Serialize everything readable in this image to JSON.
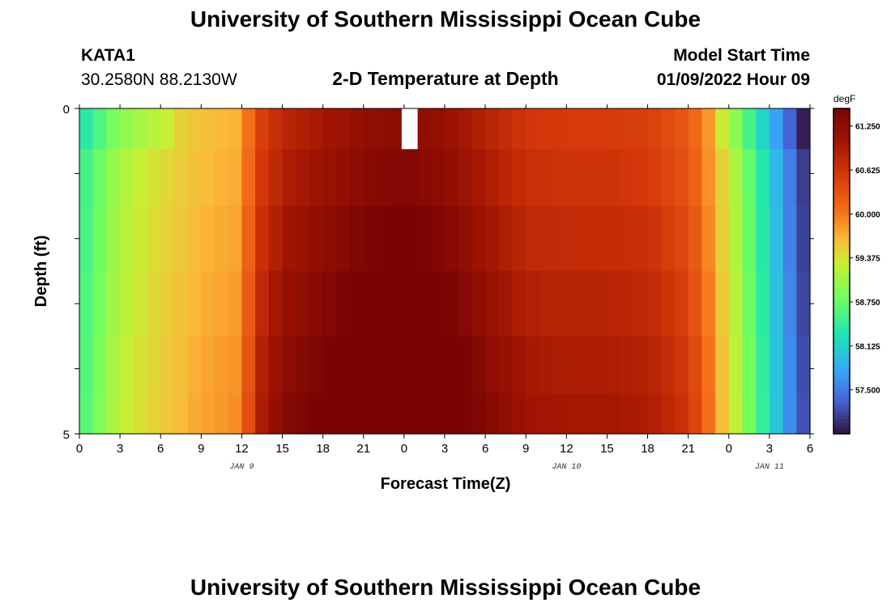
{
  "page": {
    "title": "University of Southern Mississippi Ocean Cube",
    "title_repeat": "University of Southern Mississippi Ocean Cube"
  },
  "station": {
    "name": "KATA1",
    "coords": "30.2580N  88.2130W"
  },
  "model": {
    "label": "Model Start Time",
    "time": "01/09/2022 Hour 09"
  },
  "chart_data": {
    "type": "heatmap",
    "title": "2-D Temperature at Depth",
    "xlabel": "Forecast Time(Z)",
    "ylabel": "Depth (ft)",
    "x_tick_labels": [
      "0",
      "3",
      "6",
      "9",
      "12",
      "15",
      "18",
      "21",
      "0",
      "3",
      "6",
      "9",
      "12",
      "15",
      "18",
      "21",
      "0",
      "3",
      "6"
    ],
    "date_labels": [
      {
        "text": "JAN 9",
        "at_index": 4
      },
      {
        "text": "JAN 10",
        "at_index": 12
      },
      {
        "text": "JAN 11",
        "at_index": 17
      }
    ],
    "x_hours": [
      0,
      54
    ],
    "ylim": [
      0,
      5
    ],
    "y_tick_labels": [
      "0",
      "5"
    ],
    "depth_rows": [
      0.25,
      1,
      2,
      3,
      4,
      4.75
    ],
    "colorbar": {
      "unit": "degF",
      "min": 56.875,
      "max": 61.5,
      "labels": [
        "61.250",
        "60.625",
        "60.000",
        "59.375",
        "58.750",
        "58.125",
        "57.500"
      ],
      "label_values": [
        61.25,
        60.625,
        60.0,
        59.375,
        58.75,
        58.125,
        57.5
      ]
    },
    "time_profile_hours": [
      0,
      3,
      6,
      9,
      12,
      13,
      15,
      18,
      21,
      24,
      27,
      30,
      33,
      36,
      39,
      42,
      45,
      46,
      48,
      50,
      51,
      52,
      53,
      54
    ],
    "time_profile_degF": [
      58.4,
      59.1,
      59.4,
      59.6,
      59.7,
      60.4,
      60.8,
      61.0,
      61.2,
      61.3,
      61.15,
      60.85,
      60.6,
      60.55,
      60.55,
      60.5,
      60.25,
      60.0,
      59.3,
      58.5,
      58.1,
      57.7,
      57.3,
      56.9
    ],
    "depth_offsets_degF": [
      0.0,
      0.15,
      0.35,
      0.55,
      0.75,
      0.9
    ],
    "gap": {
      "hour": 24,
      "depth_rows": [
        0
      ]
    }
  }
}
